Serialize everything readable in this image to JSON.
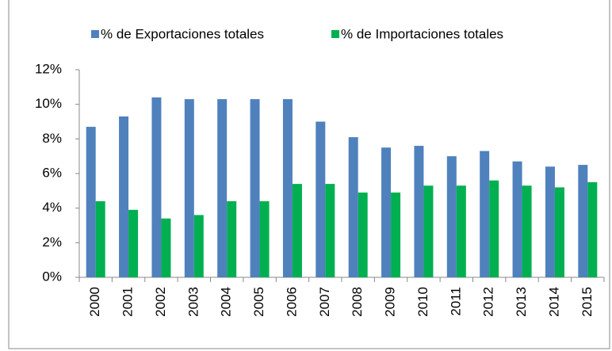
{
  "chart_data": {
    "type": "bar",
    "categories": [
      "2000",
      "2001",
      "2002",
      "2003",
      "2004",
      "2005",
      "2006",
      "2007",
      "2008",
      "2009",
      "2010",
      "2011",
      "2012",
      "2013",
      "2014",
      "2015"
    ],
    "series": [
      {
        "name": "% de Exportaciones totales",
        "color": "#4f81bd",
        "values": [
          8.7,
          9.3,
          10.4,
          10.3,
          10.3,
          10.3,
          10.3,
          9.0,
          8.1,
          7.5,
          7.6,
          7.0,
          7.3,
          6.7,
          6.4,
          6.5
        ]
      },
      {
        "name": "% de Importaciones totales",
        "color": "#00b050",
        "values": [
          4.4,
          3.9,
          3.4,
          3.6,
          4.4,
          4.4,
          5.4,
          5.4,
          4.9,
          4.9,
          5.3,
          5.3,
          5.6,
          5.3,
          5.2,
          5.5
        ]
      }
    ],
    "ylim": [
      0,
      12
    ],
    "yticks": [
      {
        "value": 0,
        "label": "0%"
      },
      {
        "value": 2,
        "label": "2%"
      },
      {
        "value": 4,
        "label": "4%"
      },
      {
        "value": 6,
        "label": "6%"
      },
      {
        "value": 8,
        "label": "8%"
      },
      {
        "value": 10,
        "label": "10%"
      },
      {
        "value": 12,
        "label": "12%"
      }
    ],
    "legend": "top"
  }
}
